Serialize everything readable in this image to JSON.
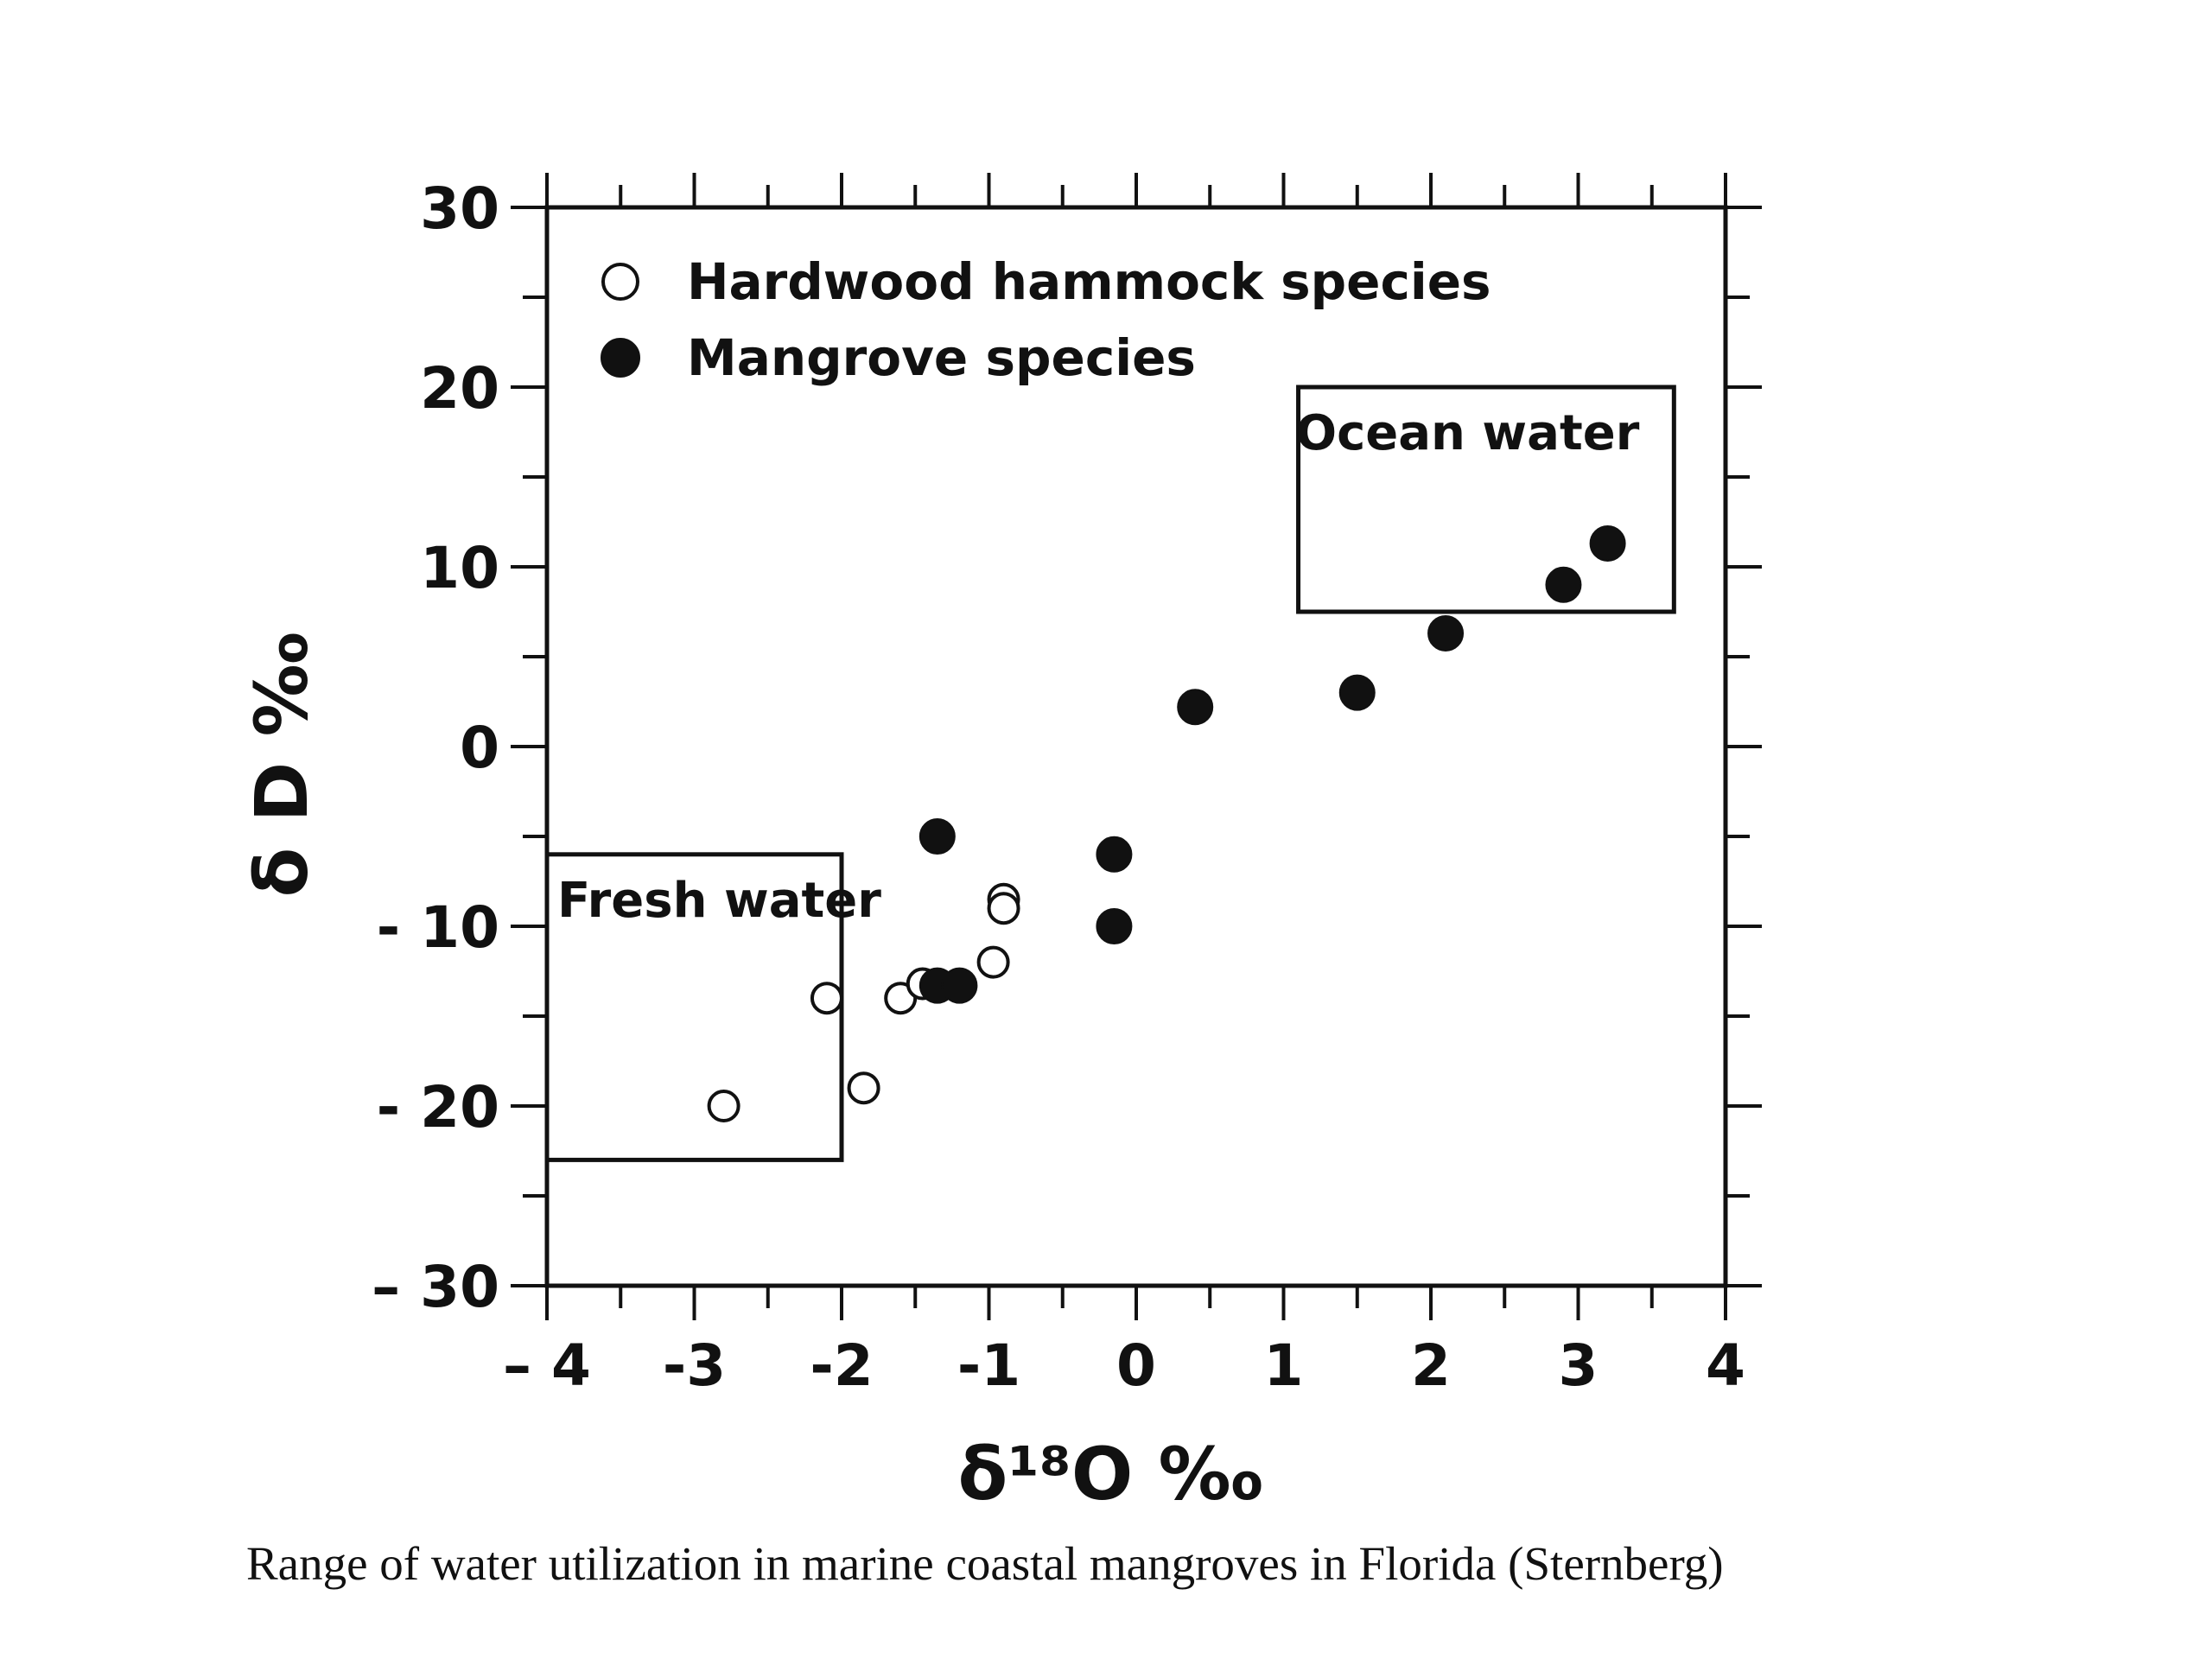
{
  "chart_data": {
    "type": "scatter",
    "xlim": [
      -4,
      4
    ],
    "ylim": [
      -30,
      30
    ],
    "x_ticks": [
      -4,
      -3,
      -2,
      -1,
      0,
      1,
      2,
      3,
      4
    ],
    "x_tick_labels": [
      "– 4",
      "-3",
      "-2",
      "-1",
      "0",
      "1",
      "2",
      "3",
      "4"
    ],
    "y_ticks": [
      30,
      20,
      10,
      0,
      -10,
      -20,
      -30
    ],
    "y_tick_labels": [
      "30",
      "20",
      "10",
      "0",
      "- 10",
      "- 20",
      "– 30"
    ],
    "xlabel": "δ¹⁸O ‰",
    "ylabel": "δ D ‰",
    "grid": false,
    "legend_position": "top-left",
    "series": [
      {
        "name": "Hardwood hammock species",
        "marker": "open-circle",
        "points": [
          {
            "x": -2.8,
            "y": -20.0
          },
          {
            "x": -2.1,
            "y": -14.0
          },
          {
            "x": -1.85,
            "y": -19.0
          },
          {
            "x": -1.6,
            "y": -14.0
          },
          {
            "x": -1.45,
            "y": -13.2
          },
          {
            "x": -0.97,
            "y": -12.0
          },
          {
            "x": -0.9,
            "y": -8.5
          },
          {
            "x": -0.9,
            "y": -9.0
          }
        ]
      },
      {
        "name": "Mangrove species",
        "marker": "filled-circle",
        "points": [
          {
            "x": -1.35,
            "y": -5.0
          },
          {
            "x": -1.35,
            "y": -13.3
          },
          {
            "x": -1.2,
            "y": -13.3
          },
          {
            "x": -0.15,
            "y": -6.0
          },
          {
            "x": -0.15,
            "y": -10.0
          },
          {
            "x": 0.4,
            "y": 2.2
          },
          {
            "x": 1.5,
            "y": 3.0
          },
          {
            "x": 2.1,
            "y": 6.3
          },
          {
            "x": 2.9,
            "y": 9.0
          },
          {
            "x": 3.2,
            "y": 11.3
          }
        ]
      }
    ],
    "annotations": [
      {
        "label": "Fresh water",
        "x_range": [
          -4,
          -2.0
        ],
        "y_range": [
          -23,
          -6
        ]
      },
      {
        "label": "Ocean water",
        "x_range": [
          1.1,
          3.65
        ],
        "y_range": [
          7.5,
          20
        ]
      }
    ]
  },
  "caption": "Range of water utilization in marine coastal mangroves in Florida (Sternberg)"
}
